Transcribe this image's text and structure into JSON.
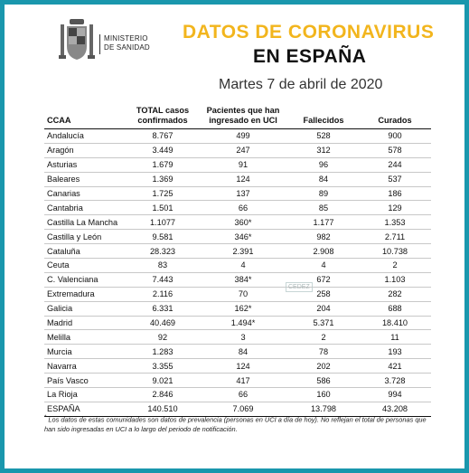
{
  "header": {
    "ministry_line1": "MINISTERIO",
    "ministry_line2": "DE SANIDAD",
    "title_line1": "DATOS DE CORONAVIRUS",
    "title_line2": "EN ESPAÑA",
    "date": "Martes 7 de abril de 2020"
  },
  "colors": {
    "border": "#1a97ad",
    "title_accent": "#f2b51d"
  },
  "watermark": "CEDEZ",
  "table": {
    "columns": [
      "CCAA",
      "TOTAL casos confirmados",
      "Pacientes que han ingresado en UCI",
      "Fallecidos",
      "Curados"
    ],
    "rows": [
      [
        "Andalucía",
        "8.767",
        "499",
        "528",
        "900"
      ],
      [
        "Aragón",
        "3.449",
        "247",
        "312",
        "578"
      ],
      [
        "Asturias",
        "1.679",
        "91",
        "96",
        "244"
      ],
      [
        "Baleares",
        "1.369",
        "124",
        "84",
        "537"
      ],
      [
        "Canarias",
        "1.725",
        "137",
        "89",
        "186"
      ],
      [
        "Cantabria",
        "1.501",
        "66",
        "85",
        "129"
      ],
      [
        "Castilla La Mancha",
        "1.1077",
        "360*",
        "1.177",
        "1.353"
      ],
      [
        "Castilla y León",
        "9.581",
        "346*",
        "982",
        "2.711"
      ],
      [
        "Cataluña",
        "28.323",
        "2.391",
        "2.908",
        "10.738"
      ],
      [
        "Ceuta",
        "83",
        "4",
        "4",
        "2"
      ],
      [
        "C. Valenciana",
        "7.443",
        "384*",
        "672",
        "1.103"
      ],
      [
        "Extremadura",
        "2.116",
        "70",
        "258",
        "282"
      ],
      [
        "Galicia",
        "6.331",
        "162*",
        "204",
        "688"
      ],
      [
        "Madrid",
        "40.469",
        "1.494*",
        "5.371",
        "18.410"
      ],
      [
        "Melilla",
        "92",
        "3",
        "2",
        "11"
      ],
      [
        "Murcia",
        "1.283",
        "84",
        "78",
        "193"
      ],
      [
        "Navarra",
        "3.355",
        "124",
        "202",
        "421"
      ],
      [
        "País Vasco",
        "9.021",
        "417",
        "586",
        "3.728"
      ],
      [
        "La Rioja",
        "2.846",
        "66",
        "160",
        "994"
      ]
    ],
    "total": [
      "ESPAÑA",
      "140.510",
      "7.069",
      "13.798",
      "43.208"
    ]
  },
  "footnote": {
    "mark": "*",
    "text": "Los datos de estas comunidades son datos de prevalencia (personas en UCI a día de hoy). No reflejan el total de personas que han sido ingresadas en UCI a lo largo del periodo de notificación."
  }
}
